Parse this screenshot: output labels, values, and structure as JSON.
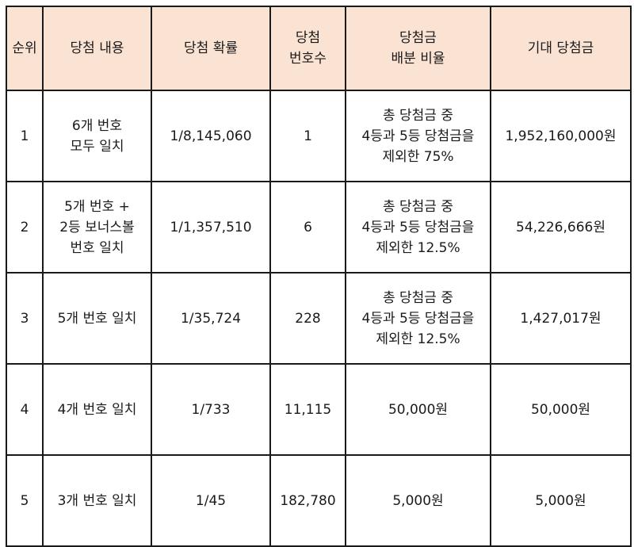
{
  "headers": {
    "rank": "순위",
    "content": "당첨 내용",
    "prob": "당첨 확률",
    "count": "당첨\n번호수",
    "ratio": "당첨금\n배분 비율",
    "expected": "기대 당첨금"
  },
  "rows": [
    {
      "rank": "1",
      "content": "6개 번호\n모두 일치",
      "prob": "1/8,145,060",
      "count": "1",
      "ratio": "총 당첨금 중\n4등과 5등 당첨금을\n제외한 75%",
      "expected": "1,952,160,000원"
    },
    {
      "rank": "2",
      "content": "5개 번호 +\n2등 보너스볼\n번호 일치",
      "prob": "1/1,357,510",
      "count": "6",
      "ratio": "총 당첨금 중\n4등과 5등 당첨금을\n제외한 12.5%",
      "expected": "54,226,666원"
    },
    {
      "rank": "3",
      "content": "5개 번호 일치",
      "prob": "1/35,724",
      "count": "228",
      "ratio": "총 당첨금 중\n4등과 5등 당첨금을\n제외한 12.5%",
      "expected": "1,427,017원"
    },
    {
      "rank": "4",
      "content": "4개 번호 일치",
      "prob": "1/733",
      "count": "11,115",
      "ratio": "50,000원",
      "expected": "50,000원"
    },
    {
      "rank": "5",
      "content": "3개 번호 일치",
      "prob": "1/45",
      "count": "182,780",
      "ratio": "5,000원",
      "expected": "5,000원"
    }
  ],
  "colors": {
    "header_bg": "#fbe3d4",
    "prob_text": "#e0202a",
    "expected_text": "#15a53c",
    "border": "#1a1a1a"
  }
}
